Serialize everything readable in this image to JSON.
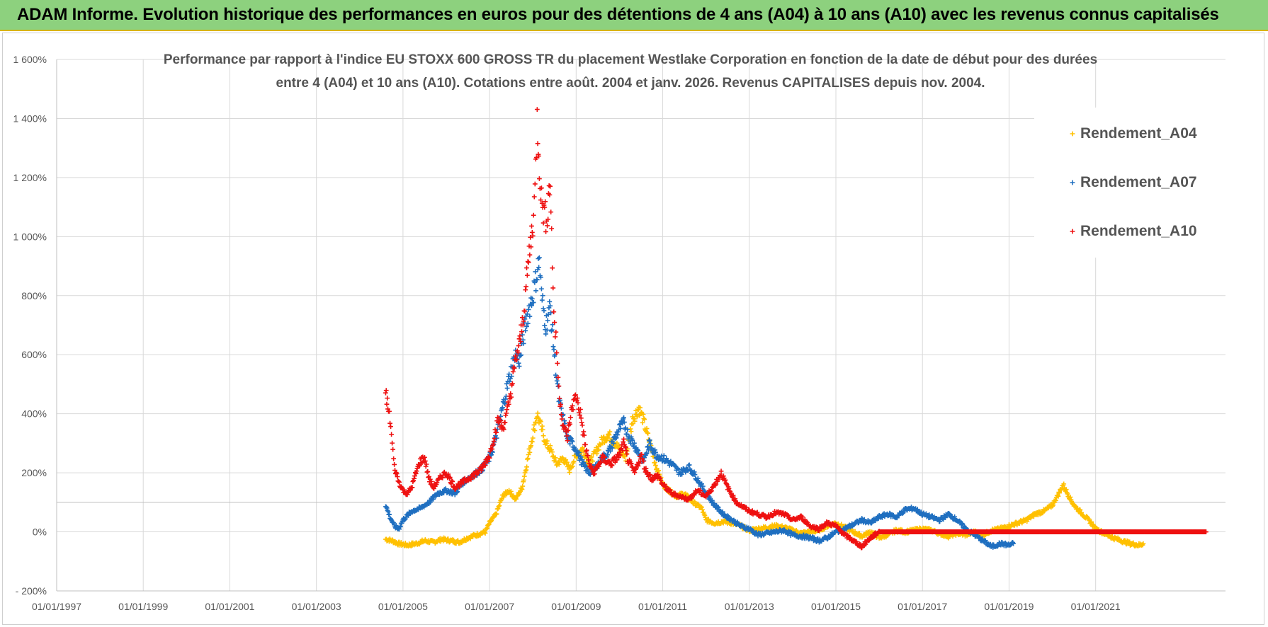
{
  "header": {
    "title": "ADAM Informe. Evolution historique des performances en euros pour des détentions de 4 ans (A04) à 10 ans (A10) avec les revenus connus capitalisés"
  },
  "chart_data": {
    "type": "scatter",
    "title_line1": "Performance par rapport à l'indice EU STOXX 600 GROSS TR  du placement Westlake Corporation en fonction de la date de début pour des durées",
    "title_line2": "entre 4 (A04) et 10 ans (A10). Cotations entre août. 2004 et janv. 2026. Revenus CAPITALISES depuis nov. 2004.",
    "xlabel": "",
    "ylabel": "",
    "xlim": [
      1997.0,
      2024.0
    ],
    "ylim": [
      -200,
      1600
    ],
    "x_ticks": [
      "01/01/1997",
      "01/01/1999",
      "01/01/2001",
      "01/01/2003",
      "01/01/2005",
      "01/01/2007",
      "01/01/2009",
      "01/01/2011",
      "01/01/2013",
      "01/01/2015",
      "01/01/2017",
      "01/01/2019",
      "01/01/2021"
    ],
    "y_ticks": [
      "1 600%",
      "1 400%",
      "1 200%",
      "1 000%",
      "800%",
      "600%",
      "400%",
      "200%",
      "0%",
      "- 200%"
    ],
    "legend": "top-right",
    "series": [
      {
        "name": "Rendement_A04",
        "color": "#ffc000",
        "points": [
          [
            2004.6,
            -25
          ],
          [
            2004.75,
            -30
          ],
          [
            2004.9,
            -40
          ],
          [
            2005.1,
            -45
          ],
          [
            2005.3,
            -40
          ],
          [
            2005.5,
            -30
          ],
          [
            2005.7,
            -35
          ],
          [
            2005.9,
            -25
          ],
          [
            2006.1,
            -30
          ],
          [
            2006.3,
            -35
          ],
          [
            2006.5,
            -20
          ],
          [
            2006.7,
            -10
          ],
          [
            2006.9,
            0
          ],
          [
            2007.0,
            30
          ],
          [
            2007.15,
            60
          ],
          [
            2007.3,
            120
          ],
          [
            2007.45,
            140
          ],
          [
            2007.6,
            110
          ],
          [
            2007.75,
            150
          ],
          [
            2007.9,
            260
          ],
          [
            2008.0,
            330
          ],
          [
            2008.1,
            400
          ],
          [
            2008.2,
            350
          ],
          [
            2008.3,
            300
          ],
          [
            2008.4,
            280
          ],
          [
            2008.55,
            230
          ],
          [
            2008.7,
            250
          ],
          [
            2008.85,
            210
          ],
          [
            2009.0,
            260
          ],
          [
            2009.15,
            280
          ],
          [
            2009.3,
            230
          ],
          [
            2009.45,
            270
          ],
          [
            2009.6,
            310
          ],
          [
            2009.75,
            330
          ],
          [
            2009.9,
            300
          ],
          [
            2010.0,
            280
          ],
          [
            2010.15,
            250
          ],
          [
            2010.3,
            380
          ],
          [
            2010.45,
            420
          ],
          [
            2010.55,
            380
          ],
          [
            2010.7,
            300
          ],
          [
            2010.85,
            220
          ],
          [
            2011.0,
            160
          ],
          [
            2011.15,
            140
          ],
          [
            2011.3,
            120
          ],
          [
            2011.5,
            130
          ],
          [
            2011.7,
            100
          ],
          [
            2011.9,
            80
          ],
          [
            2012.0,
            40
          ],
          [
            2012.2,
            30
          ],
          [
            2012.4,
            35
          ],
          [
            2012.6,
            30
          ],
          [
            2012.8,
            20
          ],
          [
            2013.0,
            5
          ],
          [
            2013.2,
            10
          ],
          [
            2013.4,
            15
          ],
          [
            2013.6,
            20
          ],
          [
            2013.8,
            15
          ],
          [
            2014.0,
            5
          ],
          [
            2014.2,
            -5
          ],
          [
            2014.4,
            0
          ],
          [
            2014.6,
            5
          ],
          [
            2014.8,
            20
          ],
          [
            2015.0,
            30
          ],
          [
            2015.2,
            15
          ],
          [
            2015.4,
            0
          ],
          [
            2015.6,
            -15
          ],
          [
            2015.8,
            0
          ],
          [
            2016.0,
            -20
          ],
          [
            2016.2,
            -10
          ],
          [
            2016.4,
            5
          ],
          [
            2016.6,
            0
          ],
          [
            2016.8,
            5
          ],
          [
            2017.0,
            10
          ],
          [
            2017.2,
            5
          ],
          [
            2017.4,
            -5
          ],
          [
            2017.6,
            -15
          ],
          [
            2017.8,
            -5
          ],
          [
            2018.0,
            -10
          ],
          [
            2018.2,
            0
          ],
          [
            2018.4,
            -10
          ],
          [
            2018.6,
            5
          ],
          [
            2018.8,
            10
          ],
          [
            2019.0,
            20
          ],
          [
            2019.2,
            30
          ],
          [
            2019.4,
            40
          ],
          [
            2019.6,
            60
          ],
          [
            2019.8,
            70
          ],
          [
            2020.0,
            90
          ],
          [
            2020.15,
            130
          ],
          [
            2020.25,
            160
          ],
          [
            2020.35,
            130
          ],
          [
            2020.5,
            90
          ],
          [
            2020.7,
            60
          ],
          [
            2020.9,
            30
          ],
          [
            2021.0,
            10
          ],
          [
            2021.2,
            -5
          ],
          [
            2021.4,
            -20
          ],
          [
            2021.6,
            -30
          ],
          [
            2021.8,
            -40
          ],
          [
            2022.0,
            -45
          ],
          [
            2022.1,
            -40
          ]
        ]
      },
      {
        "name": "Rendement_A07",
        "color": "#1f6fc0",
        "points": [
          [
            2004.6,
            90
          ],
          [
            2004.7,
            50
          ],
          [
            2004.8,
            20
          ],
          [
            2004.9,
            10
          ],
          [
            2005.0,
            40
          ],
          [
            2005.2,
            70
          ],
          [
            2005.4,
            80
          ],
          [
            2005.6,
            100
          ],
          [
            2005.8,
            130
          ],
          [
            2006.0,
            140
          ],
          [
            2006.2,
            130
          ],
          [
            2006.4,
            170
          ],
          [
            2006.6,
            190
          ],
          [
            2006.8,
            210
          ],
          [
            2007.0,
            250
          ],
          [
            2007.15,
            320
          ],
          [
            2007.3,
            420
          ],
          [
            2007.45,
            520
          ],
          [
            2007.6,
            600
          ],
          [
            2007.7,
            580
          ],
          [
            2007.8,
            680
          ],
          [
            2007.9,
            750
          ],
          [
            2008.0,
            800
          ],
          [
            2008.1,
            880
          ],
          [
            2008.15,
            920
          ],
          [
            2008.2,
            800
          ],
          [
            2008.3,
            700
          ],
          [
            2008.4,
            760
          ],
          [
            2008.5,
            600
          ],
          [
            2008.6,
            450
          ],
          [
            2008.7,
            380
          ],
          [
            2008.8,
            320
          ],
          [
            2009.0,
            280
          ],
          [
            2009.15,
            230
          ],
          [
            2009.3,
            200
          ],
          [
            2009.45,
            220
          ],
          [
            2009.6,
            250
          ],
          [
            2009.75,
            270
          ],
          [
            2009.9,
            320
          ],
          [
            2010.0,
            350
          ],
          [
            2010.1,
            370
          ],
          [
            2010.2,
            330
          ],
          [
            2010.4,
            280
          ],
          [
            2010.55,
            240
          ],
          [
            2010.7,
            300
          ],
          [
            2010.85,
            260
          ],
          [
            2011.0,
            250
          ],
          [
            2011.2,
            230
          ],
          [
            2011.4,
            200
          ],
          [
            2011.6,
            220
          ],
          [
            2011.8,
            180
          ],
          [
            2012.0,
            130
          ],
          [
            2012.2,
            90
          ],
          [
            2012.4,
            60
          ],
          [
            2012.6,
            40
          ],
          [
            2012.8,
            20
          ],
          [
            2013.0,
            10
          ],
          [
            2013.2,
            -10
          ],
          [
            2013.4,
            -5
          ],
          [
            2013.6,
            0
          ],
          [
            2013.8,
            5
          ],
          [
            2014.0,
            -10
          ],
          [
            2014.2,
            -15
          ],
          [
            2014.4,
            -20
          ],
          [
            2014.6,
            -30
          ],
          [
            2014.8,
            -20
          ],
          [
            2015.0,
            0
          ],
          [
            2015.2,
            10
          ],
          [
            2015.4,
            25
          ],
          [
            2015.6,
            40
          ],
          [
            2015.8,
            30
          ],
          [
            2016.0,
            50
          ],
          [
            2016.2,
            60
          ],
          [
            2016.4,
            50
          ],
          [
            2016.6,
            75
          ],
          [
            2016.8,
            80
          ],
          [
            2017.0,
            60
          ],
          [
            2017.2,
            50
          ],
          [
            2017.4,
            40
          ],
          [
            2017.6,
            60
          ],
          [
            2017.8,
            40
          ],
          [
            2018.0,
            10
          ],
          [
            2018.2,
            -10
          ],
          [
            2018.4,
            -30
          ],
          [
            2018.6,
            -50
          ],
          [
            2018.8,
            -40
          ],
          [
            2019.0,
            -45
          ],
          [
            2019.1,
            -40
          ]
        ]
      },
      {
        "name": "Rendement_A10",
        "color": "#ee1111",
        "points": [
          [
            2004.6,
            480
          ],
          [
            2004.65,
            420
          ],
          [
            2004.7,
            380
          ],
          [
            2004.75,
            300
          ],
          [
            2004.8,
            220
          ],
          [
            2004.9,
            170
          ],
          [
            2005.0,
            140
          ],
          [
            2005.1,
            130
          ],
          [
            2005.2,
            150
          ],
          [
            2005.3,
            200
          ],
          [
            2005.4,
            240
          ],
          [
            2005.5,
            250
          ],
          [
            2005.6,
            180
          ],
          [
            2005.7,
            150
          ],
          [
            2005.8,
            170
          ],
          [
            2005.9,
            190
          ],
          [
            2006.0,
            200
          ],
          [
            2006.2,
            150
          ],
          [
            2006.4,
            170
          ],
          [
            2006.6,
            190
          ],
          [
            2006.8,
            210
          ],
          [
            2007.0,
            260
          ],
          [
            2007.1,
            320
          ],
          [
            2007.2,
            380
          ],
          [
            2007.3,
            350
          ],
          [
            2007.4,
            400
          ],
          [
            2007.5,
            480
          ],
          [
            2007.6,
            580
          ],
          [
            2007.7,
            640
          ],
          [
            2007.8,
            760
          ],
          [
            2007.9,
            920
          ],
          [
            2008.0,
            1050
          ],
          [
            2008.05,
            1150
          ],
          [
            2008.1,
            1400
          ],
          [
            2008.15,
            1250
          ],
          [
            2008.2,
            1120
          ],
          [
            2008.3,
            1060
          ],
          [
            2008.35,
            1100
          ],
          [
            2008.4,
            1200
          ],
          [
            2008.45,
            900
          ],
          [
            2008.5,
            700
          ],
          [
            2008.55,
            620
          ],
          [
            2008.6,
            480
          ],
          [
            2008.7,
            360
          ],
          [
            2008.8,
            320
          ],
          [
            2008.9,
            420
          ],
          [
            2009.0,
            460
          ],
          [
            2009.1,
            400
          ],
          [
            2009.2,
            300
          ],
          [
            2009.3,
            230
          ],
          [
            2009.4,
            200
          ],
          [
            2009.5,
            220
          ],
          [
            2009.6,
            250
          ],
          [
            2009.8,
            230
          ],
          [
            2010.0,
            260
          ],
          [
            2010.1,
            300
          ],
          [
            2010.2,
            240
          ],
          [
            2010.35,
            200
          ],
          [
            2010.5,
            260
          ],
          [
            2010.6,
            210
          ],
          [
            2010.75,
            180
          ],
          [
            2010.9,
            190
          ],
          [
            2011.0,
            160
          ],
          [
            2011.2,
            130
          ],
          [
            2011.4,
            120
          ],
          [
            2011.6,
            110
          ],
          [
            2011.8,
            140
          ],
          [
            2012.0,
            120
          ],
          [
            2012.2,
            160
          ],
          [
            2012.35,
            200
          ],
          [
            2012.5,
            150
          ],
          [
            2012.7,
            100
          ],
          [
            2012.9,
            80
          ],
          [
            2013.0,
            70
          ],
          [
            2013.2,
            60
          ],
          [
            2013.4,
            50
          ],
          [
            2013.6,
            65
          ],
          [
            2013.8,
            60
          ],
          [
            2014.0,
            40
          ],
          [
            2014.2,
            50
          ],
          [
            2014.4,
            20
          ],
          [
            2014.6,
            10
          ],
          [
            2014.8,
            30
          ],
          [
            2015.0,
            20
          ],
          [
            2015.2,
            -10
          ],
          [
            2015.4,
            -30
          ],
          [
            2015.6,
            -50
          ],
          [
            2015.8,
            -20
          ],
          [
            2016.0,
            0
          ],
          [
            2016.5,
            0
          ],
          [
            2017.0,
            0
          ],
          [
            2017.5,
            0
          ],
          [
            2018.0,
            0
          ],
          [
            2018.5,
            0
          ],
          [
            2019.0,
            0
          ],
          [
            2019.5,
            0
          ],
          [
            2020.0,
            0
          ],
          [
            2020.5,
            0
          ],
          [
            2021.0,
            0
          ],
          [
            2021.5,
            0
          ],
          [
            2022.0,
            0
          ],
          [
            2022.5,
            0
          ],
          [
            2023.0,
            0
          ],
          [
            2023.55,
            0
          ]
        ]
      }
    ]
  }
}
